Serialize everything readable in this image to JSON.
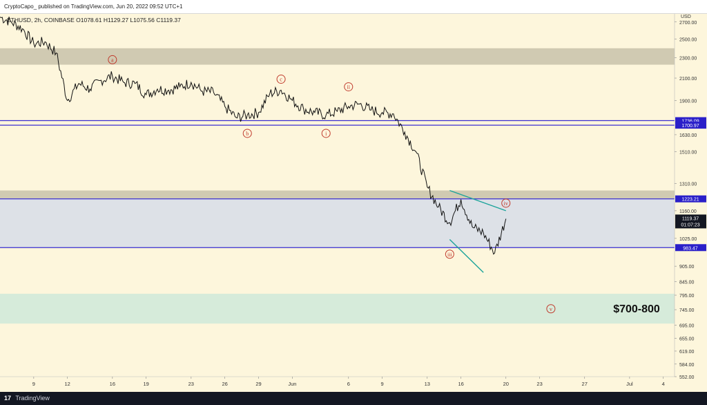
{
  "header": {
    "publisher": "CryptoCapo_ published on TradingView.com, Jun 20, 2022 09:52 UTC+1"
  },
  "footer": {
    "logo": "17",
    "brand": "TradingView"
  },
  "colors": {
    "background": "#fdf6dc",
    "price_line": "#111111",
    "resistance_band": "#c8c2aa",
    "range_band": "#d7dde9",
    "target_band": "#cfe9d9",
    "support_lines": "#3a2fd0",
    "wedge_lines": "#1aa39a",
    "wave_labels": "#c0392b",
    "current_price_tag": "#131722",
    "level_tag": "#2a1fc9"
  },
  "chart_data": {
    "type": "line",
    "title": "ETHUSD, 2h, COINBASE  O1078.61  H1129.27  L1075.56  C1119.37",
    "yaxis_currency": "USD",
    "ylim": [
      552,
      2800
    ],
    "y_ticks": [
      "2700.00",
      "2500.00",
      "2300.00",
      "2100.00",
      "1900.00",
      "1630.00",
      "1510.00",
      "1310.00",
      "1160.00",
      "1025.00",
      "905.00",
      "845.00",
      "795.00",
      "745.00",
      "695.00",
      "655.00",
      "619.00",
      "584.00",
      "552.00"
    ],
    "y_tick_values": [
      2700,
      2500,
      2300,
      2100,
      1900,
      1630,
      1510,
      1310,
      1160,
      1025,
      905,
      845,
      795,
      745,
      695,
      655,
      619,
      584,
      552
    ],
    "xlim": [
      "2022-05-06",
      "2022-07-05"
    ],
    "x_ticks": [
      {
        "date": "2022-05-09",
        "label": "9"
      },
      {
        "date": "2022-05-12",
        "label": "12"
      },
      {
        "date": "2022-05-16",
        "label": "16"
      },
      {
        "date": "2022-05-19",
        "label": "19"
      },
      {
        "date": "2022-05-23",
        "label": "23"
      },
      {
        "date": "2022-05-26",
        "label": "26"
      },
      {
        "date": "2022-05-29",
        "label": "29"
      },
      {
        "date": "2022-06-01",
        "label": "Jun"
      },
      {
        "date": "2022-06-06",
        "label": "6"
      },
      {
        "date": "2022-06-09",
        "label": "9"
      },
      {
        "date": "2022-06-13",
        "label": "13"
      },
      {
        "date": "2022-06-16",
        "label": "16"
      },
      {
        "date": "2022-06-20",
        "label": "20"
      },
      {
        "date": "2022-06-23",
        "label": "23"
      },
      {
        "date": "2022-06-27",
        "label": "27"
      },
      {
        "date": "2022-07-01",
        "label": "Jul"
      },
      {
        "date": "2022-07-04",
        "label": "4"
      }
    ],
    "series": [
      {
        "x": [
          "2022-05-06",
          "2022-05-07",
          "2022-05-08",
          "2022-05-09",
          "2022-05-10",
          "2022-05-11",
          "2022-05-12",
          "2022-05-13",
          "2022-05-14",
          "2022-05-15",
          "2022-05-16",
          "2022-05-17",
          "2022-05-18",
          "2022-05-19",
          "2022-05-20",
          "2022-05-21",
          "2022-05-22",
          "2022-05-23",
          "2022-05-24",
          "2022-05-25",
          "2022-05-26",
          "2022-05-27",
          "2022-05-28",
          "2022-05-29",
          "2022-05-30",
          "2022-05-31",
          "2022-06-01",
          "2022-06-02",
          "2022-06-03",
          "2022-06-04",
          "2022-06-05",
          "2022-06-06",
          "2022-06-07",
          "2022-06-08",
          "2022-06-09",
          "2022-06-10",
          "2022-06-11",
          "2022-06-12",
          "2022-06-13",
          "2022-06-14",
          "2022-06-15",
          "2022-06-16",
          "2022-06-17",
          "2022-06-18",
          "2022-06-19",
          "2022-06-20"
        ],
        "values": [
          2760,
          2700,
          2620,
          2450,
          2470,
          2350,
          1900,
          2050,
          2000,
          2080,
          2120,
          2060,
          2050,
          1950,
          2000,
          1990,
          2020,
          2060,
          1980,
          1970,
          1850,
          1760,
          1780,
          1800,
          1960,
          1990,
          1900,
          1830,
          1800,
          1780,
          1810,
          1850,
          1870,
          1820,
          1800,
          1790,
          1650,
          1510,
          1290,
          1180,
          1100,
          1220,
          1080,
          1050,
          960,
          1119
        ]
      }
    ],
    "zones": [
      {
        "low": 2230,
        "high": 2400,
        "kind": "resistance"
      },
      {
        "low": 983.47,
        "high": 1223.21,
        "kind": "range"
      },
      {
        "low": 1223.21,
        "high": 1270,
        "kind": "resistance"
      },
      {
        "low": 700,
        "high": 800,
        "kind": "target"
      }
    ],
    "levels": [
      1736.09,
      1700.97,
      1223.21,
      983.47
    ],
    "level_labels": [
      "1736.09",
      "1700.97",
      "1223.21",
      "983.47"
    ],
    "current_price": {
      "value": 1119.37,
      "label": "1119.37",
      "countdown": "01:07:23"
    },
    "wedge": [
      {
        "from": [
          "2022-06-15",
          1270
        ],
        "to": [
          "2022-06-20",
          1160
        ]
      },
      {
        "from": [
          "2022-06-15",
          1020
        ],
        "to": [
          "2022-06-18",
          880
        ]
      }
    ],
    "wave_labels": [
      {
        "text": "a",
        "date": "2022-05-16",
        "price": 2280
      },
      {
        "text": "b",
        "date": "2022-05-28",
        "price": 1640
      },
      {
        "text": "c",
        "date": "2022-05-31",
        "price": 2090
      },
      {
        "text": "i",
        "date": "2022-06-04",
        "price": 1640
      },
      {
        "text": "ii",
        "date": "2022-06-06",
        "price": 2020
      },
      {
        "text": "iii",
        "date": "2022-06-15",
        "price": 955
      },
      {
        "text": "iv",
        "date": "2022-06-20",
        "price": 1200
      },
      {
        "text": "v",
        "date": "2022-06-24",
        "price": 748
      }
    ],
    "target_annotation": {
      "text": "$700-800",
      "price": 750
    }
  }
}
